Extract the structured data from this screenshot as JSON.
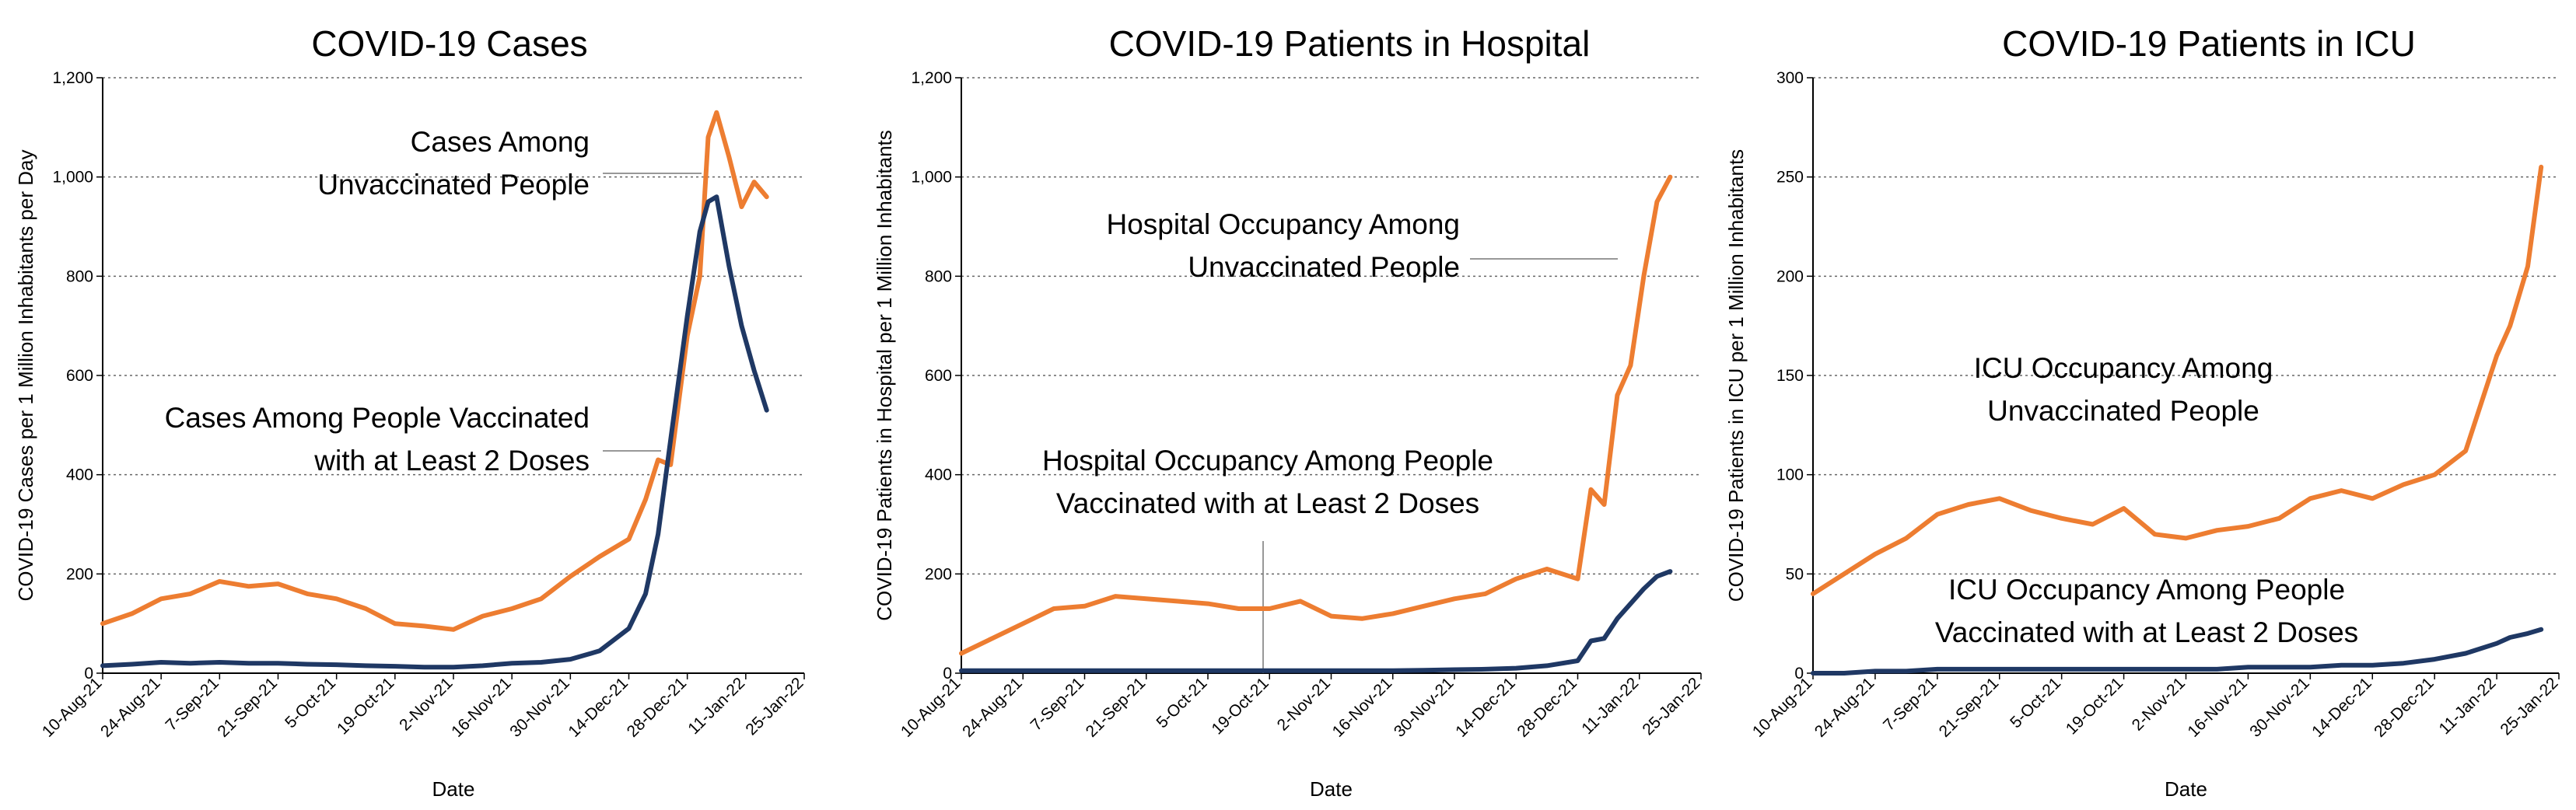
{
  "chart_data": [
    {
      "type": "line",
      "title": "COVID-19 Cases",
      "x_label": "Date",
      "y_label": "COVID-19 Cases per 1 Million Inhabitants per Day",
      "x": [
        "10-Aug-21",
        "17-Aug-21",
        "24-Aug-21",
        "31-Aug-21",
        "7-Sep-21",
        "14-Sep-21",
        "21-Sep-21",
        "28-Sep-21",
        "5-Oct-21",
        "12-Oct-21",
        "19-Oct-21",
        "26-Oct-21",
        "2-Nov-21",
        "9-Nov-21",
        "16-Nov-21",
        "23-Nov-21",
        "30-Nov-21",
        "7-Dec-21",
        "14-Dec-21",
        "18-Dec-21",
        "21-Dec-21",
        "24-Dec-21",
        "28-Dec-21",
        "31-Dec-21",
        "2-Jan-22",
        "4-Jan-22",
        "7-Jan-22",
        "10-Jan-22",
        "13-Jan-22",
        "16-Jan-22"
      ],
      "series": [
        {
          "name": "Cases Among Unvaccinated People",
          "color": "#ed7d31",
          "values": [
            100,
            120,
            150,
            160,
            185,
            175,
            180,
            160,
            150,
            130,
            100,
            95,
            88,
            115,
            130,
            150,
            195,
            235,
            270,
            350,
            430,
            420,
            680,
            800,
            1080,
            1130,
            1040,
            940,
            990,
            960
          ]
        },
        {
          "name": "Cases Among People Vaccinated with at Least 2 Doses",
          "color": "#1f3864",
          "values": [
            15,
            18,
            22,
            20,
            22,
            20,
            20,
            18,
            17,
            15,
            14,
            12,
            12,
            15,
            20,
            22,
            28,
            45,
            90,
            160,
            280,
            470,
            720,
            890,
            950,
            960,
            820,
            700,
            610,
            530
          ]
        }
      ],
      "annotations": [
        {
          "lines": [
            "Cases Among",
            "Unvaccinated People"
          ]
        },
        {
          "lines": [
            "Cases Among People Vaccinated",
            "with at Least 2 Doses"
          ]
        }
      ],
      "xlim": [
        "10-Aug-21",
        "25-Jan-22"
      ],
      "xticks": [
        "10-Aug-21",
        "24-Aug-21",
        "7-Sep-21",
        "21-Sep-21",
        "5-Oct-21",
        "19-Oct-21",
        "2-Nov-21",
        "16-Nov-21",
        "30-Nov-21",
        "14-Dec-21",
        "28-Dec-21",
        "11-Jan-22",
        "25-Jan-22"
      ],
      "ylim": [
        0,
        1200
      ],
      "yticks": [
        0,
        200,
        400,
        600,
        800,
        {
          "value": 1000,
          "label": "1,000"
        },
        {
          "value": 1200,
          "label": "1,200"
        }
      ],
      "grid": true
    },
    {
      "type": "line",
      "title": "COVID-19 Patients in Hospital",
      "x_label": "Date",
      "y_label": "COVID-19 Patients in Hospital per 1 Million Inhabitants",
      "x": [
        "10-Aug-21",
        "17-Aug-21",
        "24-Aug-21",
        "31-Aug-21",
        "7-Sep-21",
        "14-Sep-21",
        "21-Sep-21",
        "28-Sep-21",
        "5-Oct-21",
        "12-Oct-21",
        "19-Oct-21",
        "26-Oct-21",
        "2-Nov-21",
        "9-Nov-21",
        "16-Nov-21",
        "23-Nov-21",
        "30-Nov-21",
        "7-Dec-21",
        "14-Dec-21",
        "21-Dec-21",
        "28-Dec-21",
        "31-Dec-21",
        "3-Jan-22",
        "6-Jan-22",
        "9-Jan-22",
        "12-Jan-22",
        "15-Jan-22",
        "18-Jan-22"
      ],
      "series": [
        {
          "name": "Hospital Occupancy Among Unvaccinated People",
          "color": "#ed7d31",
          "values": [
            40,
            70,
            100,
            130,
            135,
            155,
            150,
            145,
            140,
            130,
            130,
            145,
            115,
            110,
            120,
            135,
            150,
            160,
            190,
            210,
            190,
            370,
            340,
            560,
            620,
            800,
            950,
            1000
          ]
        },
        {
          "name": "Hospital Occupancy Among People Vaccinated with at Least 2 Doses",
          "color": "#1f3864",
          "values": [
            5,
            5,
            5,
            5,
            5,
            5,
            5,
            5,
            5,
            5,
            5,
            5,
            5,
            5,
            5,
            6,
            7,
            8,
            10,
            15,
            25,
            65,
            70,
            110,
            140,
            170,
            195,
            205
          ]
        }
      ],
      "annotations": [
        {
          "lines": [
            "Hospital Occupancy Among",
            "Unvaccinated People"
          ]
        },
        {
          "lines": [
            "Hospital Occupancy  Among People",
            "Vaccinated with at Least 2 Doses"
          ]
        }
      ],
      "xlim": [
        "10-Aug-21",
        "25-Jan-22"
      ],
      "xticks": [
        "10-Aug-21",
        "24-Aug-21",
        "7-Sep-21",
        "21-Sep-21",
        "5-Oct-21",
        "19-Oct-21",
        "2-Nov-21",
        "16-Nov-21",
        "30-Nov-21",
        "14-Dec-21",
        "28-Dec-21",
        "11-Jan-22",
        "25-Jan-22"
      ],
      "ylim": [
        0,
        1200
      ],
      "yticks": [
        0,
        200,
        400,
        600,
        800,
        {
          "value": 1000,
          "label": "1,000"
        },
        {
          "value": 1200,
          "label": "1,200"
        }
      ],
      "grid": true
    },
    {
      "type": "line",
      "title": "COVID-19 Patients in ICU",
      "x_label": "Date",
      "y_label": "COVID-19 Patients in ICU  per 1 Million Inhabitants",
      "x": [
        "10-Aug-21",
        "17-Aug-21",
        "24-Aug-21",
        "31-Aug-21",
        "7-Sep-21",
        "14-Sep-21",
        "21-Sep-21",
        "28-Sep-21",
        "5-Oct-21",
        "12-Oct-21",
        "19-Oct-21",
        "26-Oct-21",
        "2-Nov-21",
        "9-Nov-21",
        "16-Nov-21",
        "23-Nov-21",
        "30-Nov-21",
        "7-Dec-21",
        "14-Dec-21",
        "21-Dec-21",
        "28-Dec-21",
        "4-Jan-22",
        "11-Jan-22",
        "14-Jan-22",
        "18-Jan-22",
        "21-Jan-22"
      ],
      "series": [
        {
          "name": "ICU Occupancy Among Unvaccinated People",
          "color": "#ed7d31",
          "values": [
            40,
            50,
            60,
            68,
            80,
            85,
            88,
            82,
            78,
            75,
            83,
            70,
            68,
            72,
            74,
            78,
            88,
            92,
            88,
            95,
            100,
            112,
            160,
            175,
            205,
            255
          ]
        },
        {
          "name": "ICU Occupancy Among People Vaccinated with at Least 2 Doses",
          "color": "#1f3864",
          "values": [
            0,
            0,
            1,
            1,
            2,
            2,
            2,
            2,
            2,
            2,
            2,
            2,
            2,
            2,
            3,
            3,
            3,
            4,
            4,
            5,
            7,
            10,
            15,
            18,
            20,
            22
          ]
        }
      ],
      "annotations": [
        {
          "lines": [
            "ICU Occupancy Among",
            "Unvaccinated People"
          ]
        },
        {
          "lines": [
            "ICU Occupancy Among People",
            "Vaccinated with at Least 2 Doses"
          ]
        }
      ],
      "xlim": [
        "10-Aug-21",
        "25-Jan-22"
      ],
      "xticks": [
        "10-Aug-21",
        "24-Aug-21",
        "7-Sep-21",
        "21-Sep-21",
        "5-Oct-21",
        "19-Oct-21",
        "2-Nov-21",
        "16-Nov-21",
        "30-Nov-21",
        "14-Dec-21",
        "28-Dec-21",
        "11-Jan-22",
        "25-Jan-22"
      ],
      "ylim": [
        0,
        300
      ],
      "yticks": [
        0,
        50,
        100,
        150,
        200,
        250,
        300
      ],
      "grid": true
    }
  ]
}
